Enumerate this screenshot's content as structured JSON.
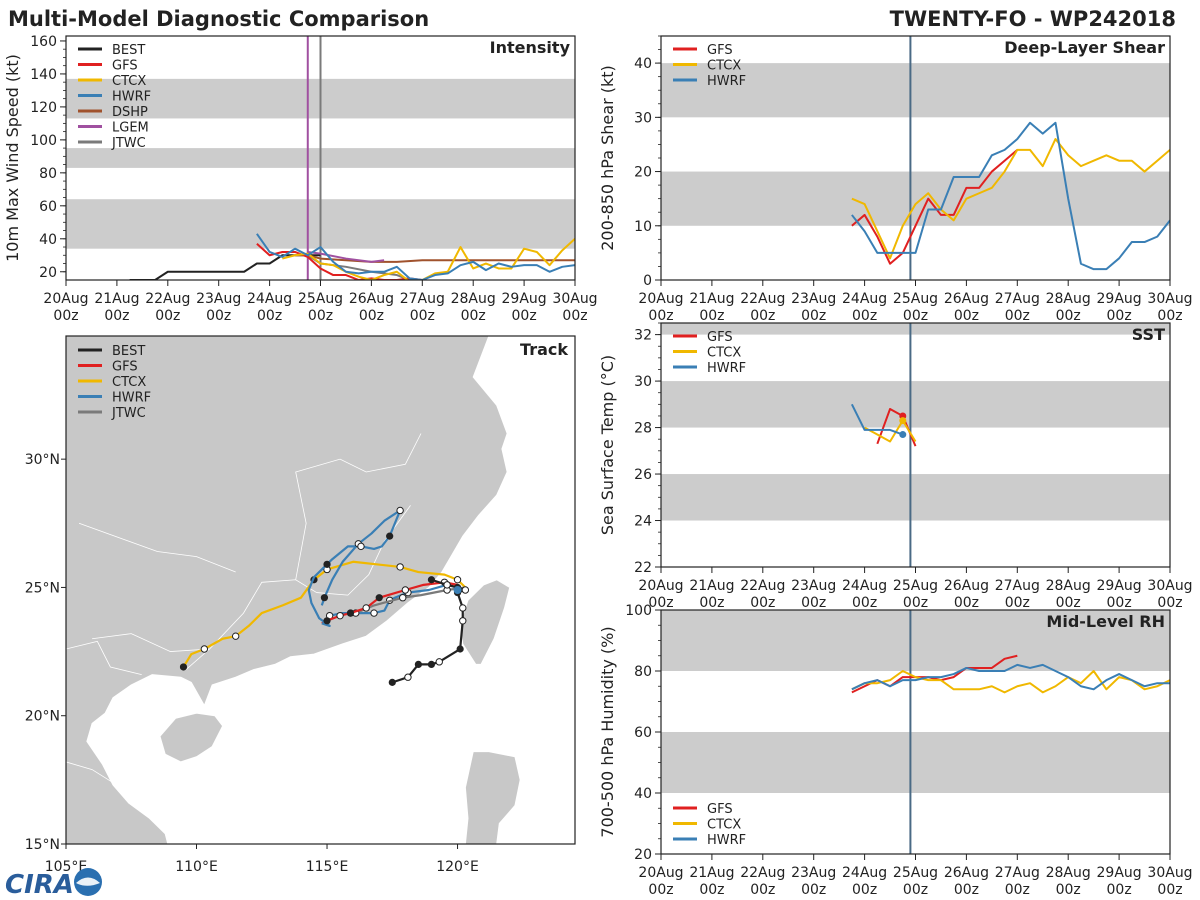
{
  "header": {
    "title": "Multi-Model Diagnostic Comparison",
    "storm": "TWENTY-FO - WP242018"
  },
  "colors": {
    "BEST": "#222222",
    "GFS": "#e02020",
    "CTCX": "#f0b800",
    "HWRF": "#3a7fb5",
    "DSHP": "#a0522d",
    "LGEM": "#a050a0",
    "JTWC": "#7a7a7a",
    "band": "#cccccc",
    "land": "#c8c8c8",
    "sea": "#ffffff",
    "coast": "#ffffff",
    "vline": "#4a6a85"
  },
  "time_axis": {
    "ticks": [
      [
        "20Aug",
        "00z"
      ],
      [
        "21Aug",
        "00z"
      ],
      [
        "22Aug",
        "00z"
      ],
      [
        "23Aug",
        "00z"
      ],
      [
        "24Aug",
        "00z"
      ],
      [
        "25Aug",
        "00z"
      ],
      [
        "26Aug",
        "00z"
      ],
      [
        "27Aug",
        "00z"
      ],
      [
        "28Aug",
        "00z"
      ],
      [
        "29Aug",
        "00z"
      ],
      [
        "30Aug",
        "00z"
      ]
    ]
  },
  "logo": {
    "text": "CIRA"
  },
  "chart_data": [
    {
      "id": "intensity",
      "type": "line",
      "title": "Intensity",
      "ylabel": "10m Max Wind Speed (kt)",
      "ylim": [
        15,
        163
      ],
      "xlim": [
        0,
        10
      ],
      "yticks": [
        20,
        40,
        60,
        80,
        100,
        120,
        140,
        160
      ],
      "bands": [
        [
          34,
          64
        ],
        [
          83,
          95
        ],
        [
          113,
          137
        ]
      ],
      "legend": [
        "BEST",
        "GFS",
        "CTCX",
        "HWRF",
        "DSHP",
        "LGEM",
        "JTWC"
      ],
      "vlines": [
        {
          "x": 4.75,
          "color": "LGEM"
        },
        {
          "x": 5.0,
          "color": "JTWC"
        }
      ],
      "series": [
        {
          "name": "BEST",
          "x": [
            1.25,
            1.5,
            1.75,
            2,
            2.25,
            2.5,
            2.75,
            3,
            3.25,
            3.5,
            3.75,
            4,
            4.25,
            4.5,
            4.75,
            5
          ],
          "y": [
            15,
            15,
            15,
            20,
            20,
            20,
            20,
            20,
            20,
            20,
            25,
            25,
            30,
            30,
            30,
            30
          ]
        },
        {
          "name": "DSHP",
          "x": [
            4.5,
            4.75,
            5,
            5.5,
            6,
            6.5,
            7,
            7.5,
            8,
            8.5,
            9,
            9.5,
            10
          ],
          "y": [
            30,
            30,
            28,
            27,
            26,
            26,
            27,
            27,
            27,
            27,
            27,
            27,
            27
          ]
        },
        {
          "name": "LGEM",
          "x": [
            4.75,
            5,
            5.5,
            6,
            6.25
          ],
          "y": [
            32,
            31,
            28,
            26,
            27
          ]
        },
        {
          "name": "JTWC",
          "x": [
            4.75,
            5,
            5.5,
            6,
            6.5,
            6.75
          ],
          "y": [
            30,
            25,
            23,
            20,
            18,
            15
          ]
        },
        {
          "name": "GFS",
          "x": [
            3.75,
            4,
            4.25,
            4.5,
            4.75,
            5,
            5.25,
            5.5,
            5.75,
            6,
            6.25,
            6.5,
            6.75,
            7
          ],
          "y": [
            37,
            30,
            32,
            32,
            29,
            22,
            18,
            18,
            15,
            16,
            15,
            15,
            16,
            15
          ]
        },
        {
          "name": "CTCX",
          "x": [
            4.25,
            4.5,
            4.75,
            5,
            5.25,
            5.5,
            5.75,
            6,
            6.25,
            6.5,
            6.75,
            7,
            7.25,
            7.5,
            7.75,
            8,
            8.25,
            8.5,
            8.75,
            9,
            9.25,
            9.5,
            9.75,
            10
          ],
          "y": [
            28,
            30,
            31,
            25,
            24,
            20,
            17,
            15,
            18,
            20,
            14,
            15,
            19,
            20,
            35,
            22,
            25,
            22,
            22,
            34,
            32,
            24,
            33,
            40
          ]
        },
        {
          "name": "HWRF",
          "x": [
            3.75,
            4,
            4.25,
            4.5,
            4.75,
            5,
            5.25,
            5.5,
            5.75,
            6,
            6.25,
            6.5,
            6.75,
            7,
            7.25,
            7.5,
            7.75,
            8,
            8.25,
            8.5,
            8.75,
            9,
            9.25,
            9.5,
            9.75,
            10
          ],
          "y": [
            43,
            32,
            29,
            34,
            30,
            35,
            26,
            20,
            19,
            20,
            20,
            23,
            16,
            15,
            18,
            19,
            24,
            26,
            21,
            25,
            23,
            24,
            24,
            20,
            23,
            24
          ]
        }
      ]
    },
    {
      "id": "shear",
      "type": "line",
      "title": "Deep-Layer Shear",
      "ylabel": "200-850 hPa Shear (kt)",
      "ylim": [
        0,
        45
      ],
      "xlim": [
        0,
        10
      ],
      "yticks": [
        0,
        10,
        20,
        30,
        40
      ],
      "bands": [
        [
          10,
          20
        ],
        [
          30,
          40
        ]
      ],
      "legend": [
        "GFS",
        "CTCX",
        "HWRF"
      ],
      "vlines": [
        {
          "x": 4.9,
          "color": "vline"
        }
      ],
      "series": [
        {
          "name": "GFS",
          "x": [
            3.75,
            4,
            4.25,
            4.5,
            4.75,
            5,
            5.25,
            5.5,
            5.75,
            6,
            6.25,
            6.5,
            6.75,
            7
          ],
          "y": [
            10,
            12,
            8,
            3,
            5,
            10,
            15,
            12,
            12,
            17,
            17,
            20,
            22,
            24
          ]
        },
        {
          "name": "CTCX",
          "x": [
            3.75,
            4,
            4.25,
            4.5,
            4.75,
            5,
            5.25,
            5.5,
            5.75,
            6,
            6.25,
            6.5,
            6.75,
            7,
            7.25,
            7.5,
            7.75,
            8,
            8.25,
            8.5,
            8.75,
            9,
            9.25,
            9.5,
            9.75,
            10
          ],
          "y": [
            15,
            14,
            9,
            4,
            10,
            14,
            16,
            13,
            11,
            15,
            16,
            17,
            20,
            24,
            24,
            21,
            26,
            23,
            21,
            22,
            23,
            22,
            22,
            20,
            22,
            24
          ]
        },
        {
          "name": "HWRF",
          "x": [
            3.75,
            4,
            4.25,
            4.5,
            4.75,
            5,
            5.25,
            5.5,
            5.75,
            6,
            6.25,
            6.5,
            6.75,
            7,
            7.25,
            7.5,
            7.75,
            8,
            8.25,
            8.5,
            8.75,
            9,
            9.25,
            9.5,
            9.75,
            10
          ],
          "y": [
            12,
            9,
            5,
            5,
            5,
            5,
            13,
            13,
            19,
            19,
            19,
            23,
            24,
            26,
            29,
            27,
            29,
            15,
            3,
            2,
            2,
            4,
            7,
            7,
            8,
            11
          ]
        }
      ]
    },
    {
      "id": "sst",
      "type": "line",
      "title": "SST",
      "ylabel": "Sea Surface Temp (°C)",
      "ylim": [
        22,
        32.5
      ],
      "xlim": [
        0,
        10
      ],
      "yticks": [
        22,
        24,
        26,
        28,
        30,
        32
      ],
      "bands": [
        [
          24,
          26
        ],
        [
          28,
          30
        ],
        [
          32,
          32.5
        ]
      ],
      "legend": [
        "GFS",
        "CTCX",
        "HWRF"
      ],
      "vlines": [
        {
          "x": 4.9,
          "color": "vline"
        }
      ],
      "series": [
        {
          "name": "GFS",
          "x": [
            4.25,
            4.5,
            4.75,
            5
          ],
          "y": [
            27.3,
            28.8,
            28.5,
            27.2
          ]
        },
        {
          "name": "CTCX",
          "x": [
            4,
            4.25,
            4.5,
            4.75,
            5
          ],
          "y": [
            28.0,
            27.7,
            27.4,
            28.3,
            27.4
          ]
        },
        {
          "name": "HWRF",
          "x": [
            3.75,
            4,
            4.25,
            4.5,
            4.75
          ],
          "y": [
            29.0,
            27.9,
            27.9,
            27.9,
            27.7
          ]
        }
      ]
    },
    {
      "id": "rh",
      "type": "line",
      "title": "Mid-Level RH",
      "ylabel": "700-500 hPa Humidity (%)",
      "ylim": [
        20,
        100
      ],
      "xlim": [
        0,
        10
      ],
      "yticks": [
        20,
        40,
        60,
        80,
        100
      ],
      "bands": [
        [
          40,
          60
        ],
        [
          80,
          100
        ]
      ],
      "legend": [
        "GFS",
        "CTCX",
        "HWRF"
      ],
      "vlines": [
        {
          "x": 4.9,
          "color": "vline"
        }
      ],
      "series": [
        {
          "name": "GFS",
          "x": [
            3.75,
            4,
            4.25,
            4.5,
            4.75,
            5,
            5.25,
            5.5,
            5.75,
            6,
            6.25,
            6.5,
            6.75,
            7
          ],
          "y": [
            73,
            75,
            77,
            75,
            78,
            78,
            78,
            77,
            78,
            81,
            81,
            81,
            84,
            85
          ]
        },
        {
          "name": "CTCX",
          "x": [
            3.75,
            4,
            4.25,
            4.5,
            4.75,
            5,
            5.25,
            5.5,
            5.75,
            6,
            6.25,
            6.5,
            6.75,
            7,
            7.25,
            7.5,
            7.75,
            8,
            8.25,
            8.5,
            8.75,
            9,
            9.25,
            9.5,
            9.75,
            10
          ],
          "y": [
            74,
            76,
            76,
            77,
            80,
            78,
            77,
            77,
            74,
            74,
            74,
            75,
            73,
            75,
            76,
            73,
            75,
            78,
            76,
            80,
            74,
            78,
            77,
            74,
            75,
            77
          ]
        },
        {
          "name": "HWRF",
          "x": [
            3.75,
            4,
            4.25,
            4.5,
            4.75,
            5,
            5.25,
            5.5,
            5.75,
            6,
            6.25,
            6.5,
            6.75,
            7,
            7.25,
            7.5,
            7.75,
            8,
            8.25,
            8.5,
            8.75,
            9,
            9.25,
            9.5,
            9.75,
            10
          ],
          "y": [
            74,
            76,
            77,
            75,
            77,
            77,
            78,
            78,
            79,
            81,
            80,
            80,
            80,
            82,
            81,
            82,
            80,
            78,
            75,
            74,
            77,
            79,
            77,
            75,
            76,
            76
          ]
        }
      ]
    },
    {
      "id": "track",
      "type": "map",
      "title": "Track",
      "lonlim": [
        105,
        124.5
      ],
      "latlim": [
        15,
        34.8
      ],
      "xticks": [
        {
          "v": 105,
          "l": "105°E"
        },
        {
          "v": 110,
          "l": "110°E"
        },
        {
          "v": 115,
          "l": "115°E"
        },
        {
          "v": 120,
          "l": "120°E"
        }
      ],
      "yticks": [
        {
          "v": 15,
          "l": "15°N"
        },
        {
          "v": 20,
          "l": "20°N"
        },
        {
          "v": 25,
          "l": "25°N"
        },
        {
          "v": 30,
          "l": "30°N"
        }
      ],
      "legend": [
        "BEST",
        "GFS",
        "CTCX",
        "HWRF",
        "JTWC"
      ],
      "series": [
        {
          "name": "BEST",
          "lon": [
            117.5,
            118.1,
            118.5,
            119.0,
            119.3,
            120.1,
            120.2,
            120.2,
            120.0,
            120.3,
            120.0,
            119.6,
            119.0
          ],
          "lat": [
            21.3,
            21.5,
            22.0,
            22.0,
            22.1,
            22.6,
            23.7,
            24.2,
            24.8,
            24.9,
            25.0,
            25.1,
            25.3
          ],
          "open": [
            1,
            4,
            6,
            7,
            9,
            11
          ]
        },
        {
          "name": "GFS",
          "lon": [
            120.0,
            119.5,
            118.7,
            118.0,
            117.0,
            116.5,
            115.9,
            115.5,
            115.0,
            114.8
          ],
          "lat": [
            25.1,
            25.2,
            25.1,
            24.9,
            24.6,
            24.2,
            24.0,
            23.9,
            23.7,
            23.6
          ],
          "open": [
            1,
            3,
            5,
            7
          ]
        },
        {
          "name": "CTCX",
          "lon": [
            120.4,
            120.0,
            119.5,
            118.5,
            117.8,
            116.0,
            115.0,
            114.5,
            114.0,
            113.3,
            112.5,
            112.0,
            111.5,
            111.0,
            110.3,
            109.8,
            109.5
          ],
          "lat": [
            24.9,
            25.3,
            25.5,
            25.6,
            25.8,
            26.0,
            25.7,
            25.3,
            24.6,
            24.3,
            24.0,
            23.5,
            23.1,
            23.0,
            22.6,
            22.4,
            21.9
          ],
          "open": [
            1,
            4,
            6,
            12,
            14
          ],
          "filled": [
            7,
            16
          ]
        },
        {
          "name": "HWRF",
          "lon": [
            120.3,
            119.6,
            118.9,
            118.1,
            117.6,
            117.4,
            117.2,
            116.8,
            116.4,
            115.9,
            115.6,
            115.1,
            114.9
          ],
          "lat": [
            24.9,
            25.1,
            24.9,
            24.8,
            24.6,
            24.5,
            24.1,
            24.0,
            24.0,
            24.0,
            24.0,
            23.9,
            23.6
          ],
          "open": [
            1,
            3,
            5,
            7,
            9,
            11
          ]
        },
        {
          "name": "JTWC",
          "lon": [
            120.3,
            119.6,
            118.6,
            117.9,
            116.8,
            116.1
          ],
          "lat": [
            25.0,
            24.9,
            24.7,
            24.6,
            24.3,
            24.0
          ],
          "open": [
            1,
            3,
            5
          ]
        }
      ],
      "hwrf_loop": {
        "lon": [
          114.8,
          114.9,
          115.2,
          115.6,
          116.2,
          116.7,
          117.2,
          117.8,
          117.4,
          117.1,
          116.8,
          116.3,
          115.8,
          115.2,
          115.0,
          114.5,
          114.3,
          114.4,
          114.7,
          115.1,
          114.8
        ],
        "lat": [
          24.3,
          24.6,
          25.3,
          26.0,
          26.7,
          27.1,
          27.6,
          28.0,
          27.0,
          26.6,
          26.5,
          26.6,
          26.6,
          26.1,
          25.9,
          25.4,
          24.9,
          24.4,
          23.8,
          23.5,
          23.6
        ],
        "open": [
          4,
          7,
          11
        ],
        "filled": [
          1,
          8,
          14
        ]
      }
    }
  ]
}
